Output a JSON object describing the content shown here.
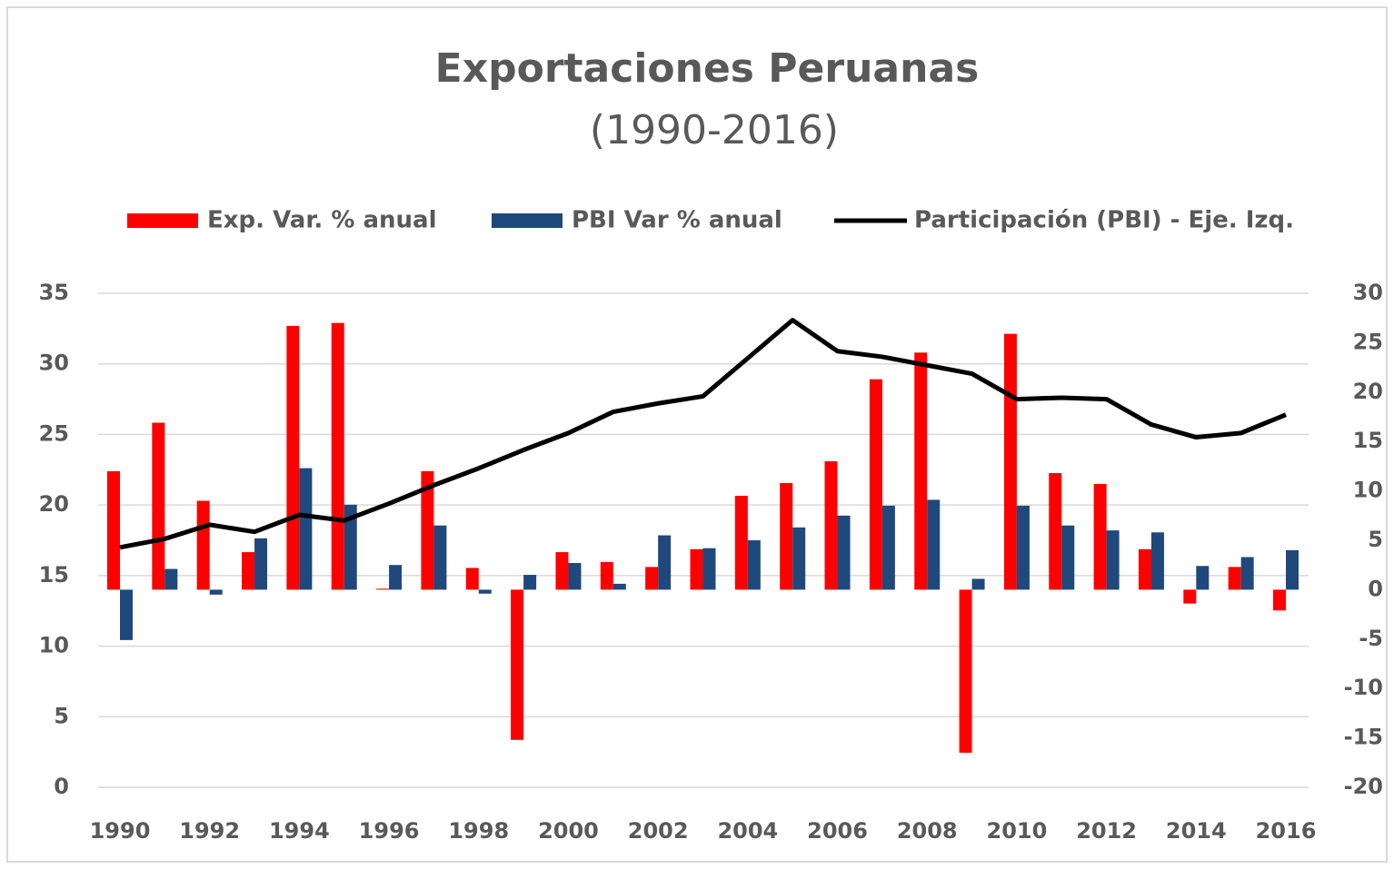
{
  "chart_data": {
    "type": "bar",
    "title": "Exportaciones Peruanas",
    "subtitle": "(1990-2016)",
    "categories": [
      "1990",
      null,
      "1992",
      null,
      "1994",
      null,
      "1996",
      null,
      "1998",
      null,
      "2000",
      null,
      "2002",
      null,
      "2004",
      null,
      "2006",
      null,
      "2008",
      null,
      "2010",
      null,
      "2012",
      null,
      "2014",
      null,
      "2016"
    ],
    "series": [
      {
        "name": "Exp. Var. % anual",
        "type": "bar",
        "axis": "y2",
        "color": "#ff0000",
        "values": [
          12.0,
          16.9,
          9.0,
          3.8,
          26.7,
          27.0,
          0.1,
          12.0,
          2.2,
          -15.2,
          3.8,
          2.8,
          2.3,
          4.1,
          9.5,
          10.8,
          13.0,
          21.3,
          24.0,
          -16.5,
          25.9,
          11.8,
          10.7,
          4.1,
          -1.4,
          2.3,
          -2.1
        ]
      },
      {
        "name": "PBI Var % anual",
        "type": "bar",
        "axis": "y2",
        "color": "#1f497d",
        "values": [
          -5.1,
          2.1,
          -0.5,
          5.2,
          12.3,
          8.6,
          2.5,
          6.5,
          -0.4,
          1.5,
          2.7,
          0.6,
          5.5,
          4.2,
          5.0,
          6.3,
          7.5,
          8.5,
          9.1,
          1.1,
          8.5,
          6.5,
          6.0,
          5.8,
          2.4,
          3.3,
          4.0
        ]
      },
      {
        "name": "Participación (PBI) - Eje. Izq.",
        "type": "line",
        "axis": "y",
        "color": "#000000",
        "values": [
          17.0,
          17.6,
          18.6,
          18.1,
          19.3,
          18.9,
          20.1,
          21.4,
          22.6,
          23.9,
          25.1,
          26.6,
          27.2,
          27.7,
          30.4,
          33.1,
          30.9,
          30.5,
          29.9,
          29.3,
          27.5,
          27.6,
          27.5,
          25.7,
          24.8,
          25.1,
          26.4
        ]
      }
    ],
    "ylim": [
      0,
      35
    ],
    "yticks": [
      0,
      5,
      10,
      15,
      20,
      25,
      30,
      35
    ],
    "y2lim": [
      -20,
      30
    ],
    "y2ticks": [
      -20,
      -15,
      -10,
      -5,
      0,
      5,
      10,
      15,
      20,
      25,
      30
    ],
    "grid": true,
    "legend": "top"
  }
}
